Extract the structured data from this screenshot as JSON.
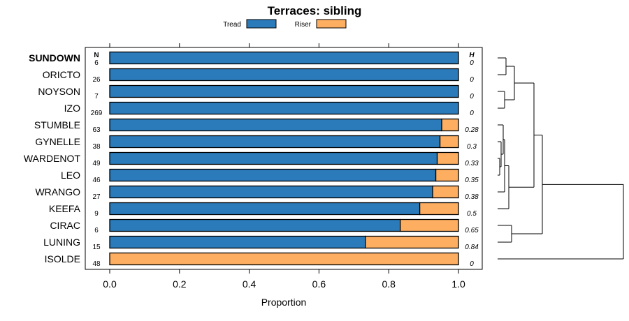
{
  "chart_data": {
    "type": "bar",
    "orientation": "horizontal",
    "stacked": true,
    "title": "Terraces: sibling",
    "xlabel": "Proportion",
    "ylabel": "",
    "xlim": [
      0,
      1
    ],
    "xticks": [
      "0.0",
      "0.2",
      "0.4",
      "0.6",
      "0.8",
      "1.0"
    ],
    "legend": {
      "placement": "top",
      "items": [
        {
          "label": "Tread",
          "color": "#2b7bba"
        },
        {
          "label": "Riser",
          "color": "#fdae61"
        }
      ]
    },
    "n_header": "N",
    "h_header": "H",
    "categories": [
      "SUNDOWN",
      "ORICTO",
      "NOYSON",
      "IZO",
      "STUMBLE",
      "GYNELLE",
      "WARDENOT",
      "LEO",
      "WRANGO",
      "KEEFA",
      "CIRAC",
      "LUNING",
      "ISOLDE"
    ],
    "bold_categories": [
      "SUNDOWN"
    ],
    "n": [
      "6",
      "26",
      "7",
      "269",
      "63",
      "38",
      "49",
      "46",
      "27",
      "9",
      "6",
      "15",
      "48"
    ],
    "h": [
      "0",
      "0",
      "0",
      "0",
      "0.28",
      "0.3",
      "0.33",
      "0.35",
      "0.38",
      "0.5",
      "0.65",
      "0.84",
      "0"
    ],
    "series": [
      {
        "name": "Tread",
        "values": [
          1.0,
          1.0,
          1.0,
          1.0,
          0.952,
          0.947,
          0.939,
          0.935,
          0.926,
          0.889,
          0.833,
          0.733,
          0.0
        ]
      },
      {
        "name": "Riser",
        "values": [
          0.0,
          0.0,
          0.0,
          0.0,
          0.048,
          0.053,
          0.061,
          0.065,
          0.074,
          0.111,
          0.167,
          0.267,
          1.0
        ]
      }
    ],
    "dendrogram": {
      "description": "hierarchical clustering of categories by profile",
      "merges": [
        {
          "a": 0,
          "b": 1,
          "height": 0.6
        },
        {
          "a": 2,
          "b": 3,
          "height": 0.5
        },
        {
          "a": "m0",
          "b": "m1",
          "height": 1.2
        },
        {
          "a": 6,
          "b": 7,
          "height": 0.15
        },
        {
          "a": 5,
          "b": "m3",
          "height": 0.25
        },
        {
          "a": 4,
          "b": "m4",
          "height": 0.4
        },
        {
          "a": 8,
          "b": "m5",
          "height": 0.5
        },
        {
          "a": "m6",
          "b": 9,
          "height": 0.8
        },
        {
          "a": "m2",
          "b": "m7",
          "height": 2.6
        },
        {
          "a": 10,
          "b": 11,
          "height": 1.0
        },
        {
          "a": "m8",
          "b": "m9",
          "height": 3.2
        },
        {
          "a": "m10",
          "b": 12,
          "height": 9.0
        }
      ]
    }
  }
}
